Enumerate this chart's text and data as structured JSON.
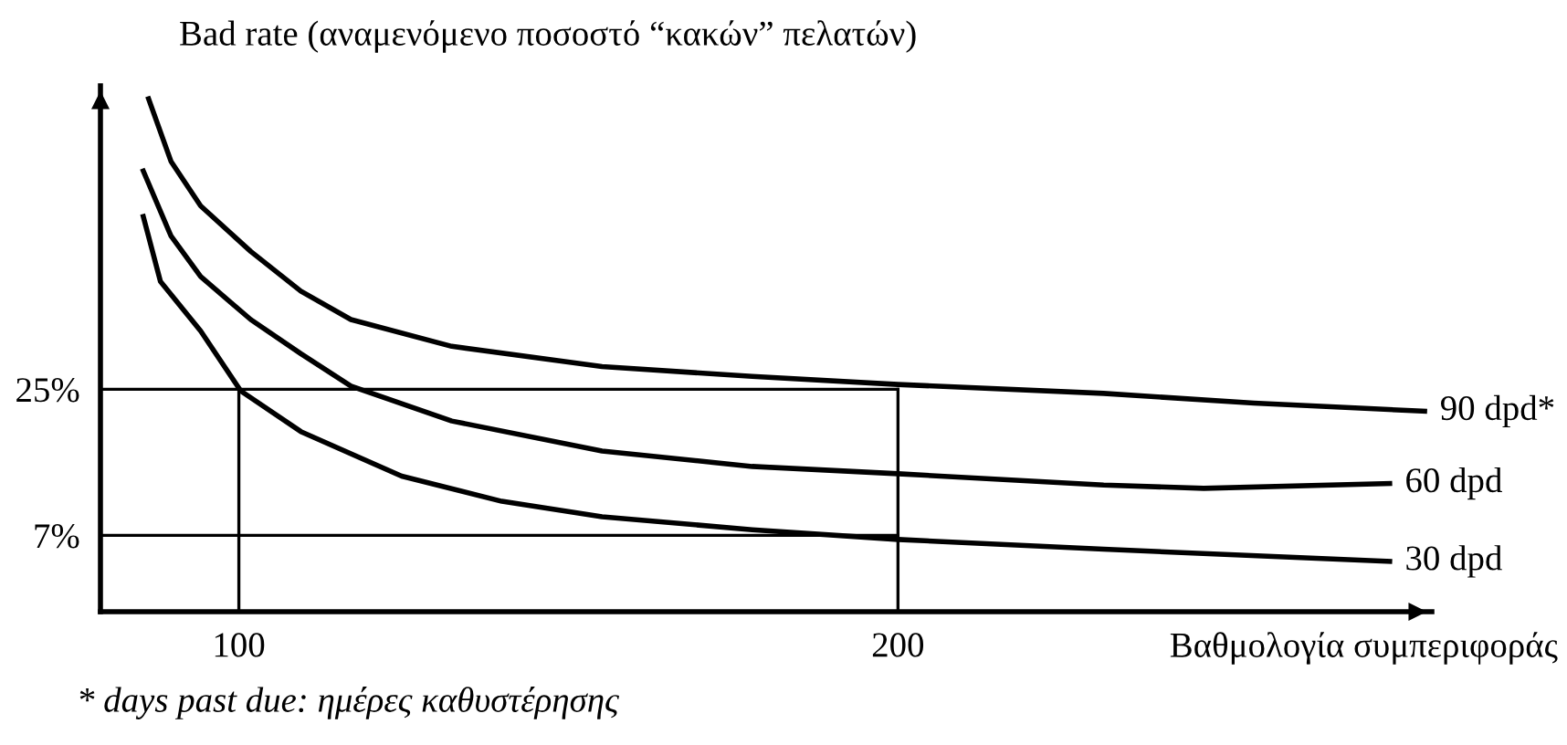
{
  "chart_data": {
    "type": "line",
    "ylabel": "Bad rate (αναμενόμενο ποσοστό “κακών” πελατών)",
    "xlabel": "Βαθμολογία συμπεριφοράς",
    "annotations": [
      "* days past due: ημέρες καθυστέρησης"
    ],
    "xlim": [
      79,
      281
    ],
    "ylim": [
      -2.4,
      62.4
    ],
    "xticks": [
      100,
      200
    ],
    "yticks": [
      {
        "value": 7,
        "label": "7%"
      },
      {
        "value": 25,
        "label": "25%"
      }
    ],
    "grid": false,
    "legend": false,
    "marker": "none",
    "line_style": "solid",
    "series": [
      {
        "name": "90 dpd*",
        "color": "#000000",
        "x": [
          86.3,
          89.7,
          94.2,
          101.8,
          109.4,
          117.0,
          132.3,
          155.1,
          177.9,
          200,
          231.2,
          254.0,
          279.9
        ],
        "values": [
          60.8,
          53.1,
          47.6,
          42.0,
          37.1,
          33.6,
          30.3,
          27.8,
          26.6,
          25.6,
          24.5,
          23.3,
          22.3
        ]
      },
      {
        "name": "60 dpd",
        "color": "#000000",
        "x": [
          85.5,
          89.7,
          94.2,
          101.8,
          109.4,
          117.0,
          132.3,
          155.1,
          177.9,
          200,
          231.2,
          246.4,
          274.6
        ],
        "values": [
          51.9,
          43.9,
          38.9,
          33.6,
          29.4,
          25.4,
          21.1,
          17.4,
          15.5,
          14.6,
          13.2,
          12.8,
          13.4
        ]
      },
      {
        "name": "30 dpd",
        "color": "#000000",
        "x": [
          85.5,
          88.1,
          94.2,
          100.3,
          109.4,
          124.7,
          139.9,
          155.1,
          177.9,
          200,
          231.2,
          274.6
        ],
        "values": [
          46.3,
          38.3,
          32.2,
          24.8,
          19.8,
          14.3,
          11.2,
          9.3,
          7.7,
          6.5,
          5.3,
          3.8
        ]
      }
    ],
    "ref_lines": [
      {
        "axis": "y",
        "value": 25,
        "color": "#000000"
      },
      {
        "axis": "y",
        "value": 7,
        "color": "#000000"
      },
      {
        "axis": "x",
        "value": 100,
        "color": "#000000"
      },
      {
        "axis": "x",
        "value": 200,
        "color": "#000000"
      }
    ]
  }
}
